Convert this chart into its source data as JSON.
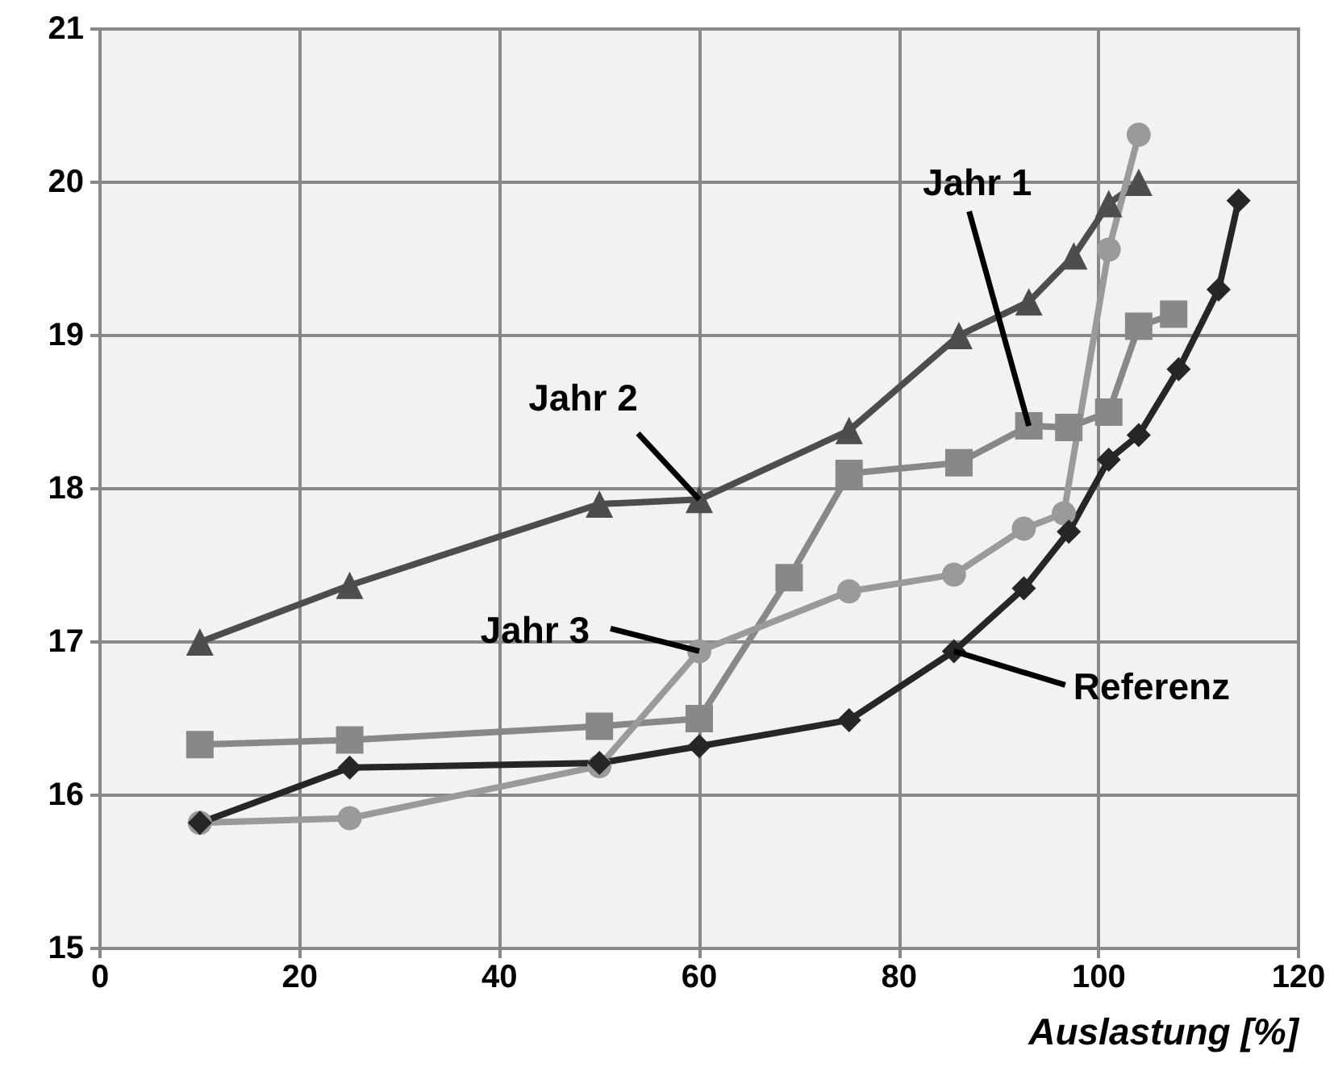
{
  "chart_data": {
    "type": "line",
    "xlabel": "Auslastung [%]",
    "xlim": [
      0,
      120
    ],
    "xticks": [
      0,
      20,
      40,
      60,
      80,
      100,
      120
    ],
    "ylim": [
      15,
      21
    ],
    "yticks": [
      15,
      16,
      17,
      18,
      19,
      20,
      21
    ],
    "grid": true,
    "legend": false,
    "series": [
      {
        "name": "Jahr 2",
        "color": "#4d4d4d",
        "marker": "triangle",
        "x": [
          10,
          25,
          50,
          60,
          75,
          86,
          93,
          97.5,
          101,
          104
        ],
        "values": [
          17.0,
          17.37,
          17.9,
          17.93,
          18.38,
          19.0,
          19.22,
          19.52,
          19.86,
          20.0
        ]
      },
      {
        "name": "Jahr 1",
        "color": "#888888",
        "marker": "square",
        "x": [
          10,
          25,
          50,
          60,
          69,
          75,
          86,
          93,
          97,
          101,
          104,
          107.5
        ],
        "values": [
          16.33,
          16.36,
          16.45,
          16.5,
          17.42,
          18.1,
          18.17,
          18.41,
          18.4,
          18.5,
          19.06,
          19.14
        ]
      },
      {
        "name": "Jahr 3",
        "color": "#9a9a9a",
        "marker": "circle",
        "x": [
          10,
          25,
          50,
          60,
          75,
          85.5,
          92.5,
          96.5,
          101,
          104
        ],
        "values": [
          15.82,
          15.85,
          16.19,
          16.94,
          17.33,
          17.44,
          17.74,
          17.84,
          19.56,
          20.31
        ]
      },
      {
        "name": "Referenz",
        "color": "#262626",
        "marker": "diamond",
        "x": [
          10,
          25,
          50,
          60,
          75,
          85.5,
          92.5,
          97,
          101,
          104,
          108,
          112,
          114
        ],
        "values": [
          15.82,
          16.18,
          16.21,
          16.32,
          16.49,
          16.94,
          17.35,
          17.72,
          18.19,
          18.35,
          18.78,
          19.3,
          19.88
        ]
      }
    ]
  }
}
